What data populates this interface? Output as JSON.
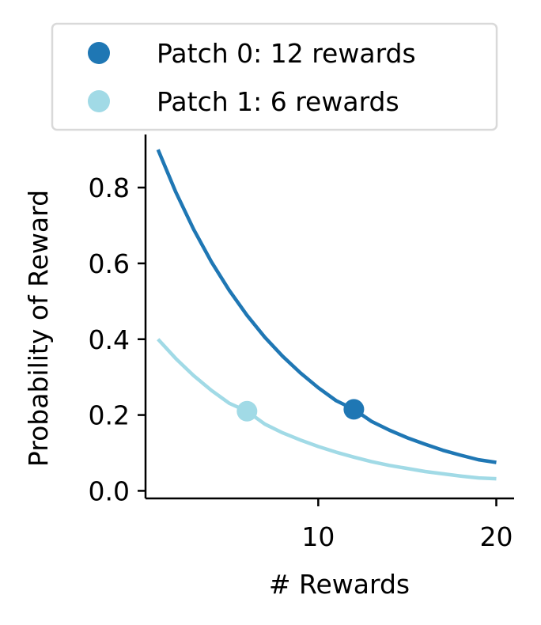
{
  "chart_data": {
    "type": "line",
    "xlabel": "# Rewards",
    "ylabel": "Probability of Reward",
    "xlim": [
      0.3,
      21
    ],
    "ylim": [
      -0.02,
      0.94
    ],
    "x_ticks": [
      10,
      20
    ],
    "x_tick_labels": [
      "10",
      "20"
    ],
    "y_ticks": [
      0.0,
      0.2,
      0.4,
      0.6,
      0.8
    ],
    "y_tick_labels": [
      "0.0",
      "0.2",
      "0.4",
      "0.6",
      "0.8"
    ],
    "grid": false,
    "legend_position": "top",
    "series": [
      {
        "name": "Patch 0: 12 rewards",
        "color": "#1f77b4",
        "x": [
          1,
          2,
          3,
          4,
          5,
          6,
          7,
          8,
          9,
          10,
          11,
          12,
          13,
          14,
          15,
          16,
          17,
          18,
          19,
          20
        ],
        "y": [
          0.9,
          0.788,
          0.69,
          0.604,
          0.529,
          0.463,
          0.405,
          0.355,
          0.311,
          0.272,
          0.238,
          0.215,
          0.183,
          0.16,
          0.14,
          0.123,
          0.107,
          0.094,
          0.082,
          0.075
        ],
        "marker": {
          "x": 12,
          "y": 0.215
        }
      },
      {
        "name": "Patch 1: 6 rewards",
        "color": "#a1dae6",
        "x": [
          1,
          2,
          3,
          4,
          5,
          6,
          7,
          8,
          9,
          10,
          11,
          12,
          13,
          14,
          15,
          16,
          17,
          18,
          19,
          20
        ],
        "y": [
          0.4,
          0.349,
          0.304,
          0.265,
          0.231,
          0.21,
          0.176,
          0.153,
          0.134,
          0.117,
          0.102,
          0.089,
          0.077,
          0.067,
          0.059,
          0.051,
          0.045,
          0.039,
          0.034,
          0.032
        ],
        "marker": {
          "x": 6,
          "y": 0.21
        }
      }
    ]
  }
}
